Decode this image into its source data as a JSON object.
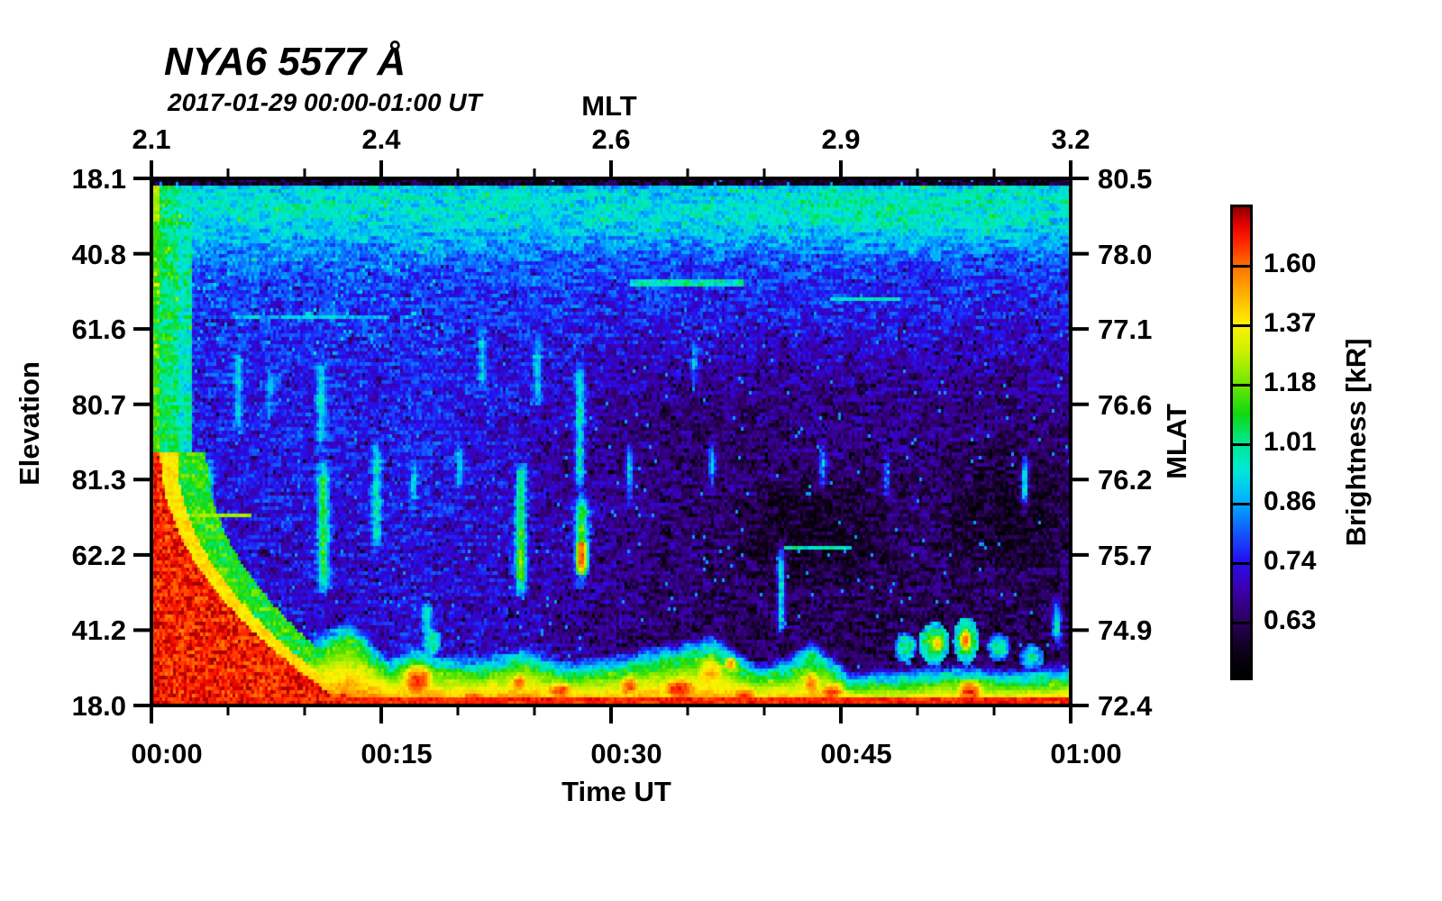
{
  "header": {
    "title": "NYA6 5577 Å",
    "subtitle": "2017-01-29 00:00-01:00 UT"
  },
  "axes": {
    "top": {
      "title": "MLT",
      "tick_labels": [
        "2.1",
        "2.4",
        "2.6",
        "2.9",
        "3.2"
      ],
      "minor_per_interval": 2
    },
    "bottom": {
      "title": "Time UT",
      "tick_labels": [
        "00:00",
        "00:15",
        "00:30",
        "00:45",
        "01:00"
      ],
      "minor_per_interval": 2
    },
    "left": {
      "title": "Elevation",
      "tick_labels": [
        "18.1",
        "40.8",
        "61.6",
        "80.7",
        "81.3",
        "62.2",
        "41.2",
        "18.0"
      ]
    },
    "right": {
      "title": "MLAT",
      "tick_labels": [
        "80.5",
        "78.0",
        "77.1",
        "76.6",
        "76.2",
        "75.7",
        "74.9",
        "72.4"
      ]
    }
  },
  "colorbar": {
    "title": "Brightness [kR]",
    "tick_labels": [
      "1.60",
      "1.37",
      "1.18",
      "1.01",
      "0.86",
      "0.74",
      "0.63"
    ]
  },
  "chart_data": {
    "type": "heatmap",
    "title": "NYA6 5577 Å",
    "subtitle": "2017-01-29 00:00-01:00 UT",
    "x_axis": {
      "label": "Time UT",
      "ticks": [
        "00:00",
        "00:15",
        "00:30",
        "00:45",
        "01:00"
      ],
      "minor_step_minutes": 5
    },
    "x2_axis": {
      "label": "MLT",
      "ticks": [
        2.1,
        2.4,
        2.6,
        2.9,
        3.2
      ]
    },
    "y_axis": {
      "label": "Elevation",
      "ticks": [
        18.1,
        40.8,
        61.6,
        80.7,
        81.3,
        62.2,
        41.2,
        18.0
      ]
    },
    "y2_axis": {
      "label": "MLAT",
      "ticks": [
        80.5,
        78.0,
        77.1,
        76.6,
        76.2,
        75.7,
        74.9,
        72.4
      ]
    },
    "z_axis": {
      "label": "Brightness [kR]",
      "colorbar_ticks": [
        1.6,
        1.37,
        1.18,
        1.01,
        0.86,
        0.74,
        0.63
      ],
      "colorbar_scale": "histogram-equalized"
    },
    "grid": false,
    "colormap": {
      "stops": [
        [
          0.0,
          "#000000"
        ],
        [
          0.05,
          "#0c0016"
        ],
        [
          0.125,
          "#2e0060"
        ],
        [
          0.19,
          "#3c00b0"
        ],
        [
          0.25,
          "#2410f0"
        ],
        [
          0.315,
          "#1060ff"
        ],
        [
          0.375,
          "#00b0ff"
        ],
        [
          0.44,
          "#00e8d8"
        ],
        [
          0.5,
          "#00e890"
        ],
        [
          0.56,
          "#10d810"
        ],
        [
          0.625,
          "#70e800"
        ],
        [
          0.69,
          "#c8f000"
        ],
        [
          0.75,
          "#fff200"
        ],
        [
          0.815,
          "#ffb000"
        ],
        [
          0.875,
          "#ff7000"
        ],
        [
          0.93,
          "#ff2000"
        ],
        [
          0.965,
          "#e00000"
        ],
        [
          1.0,
          "#8c0000"
        ]
      ]
    },
    "render": {
      "seed": 1290117,
      "cell": [
        3,
        4
      ],
      "background": {
        "top_dark_v": 0.012,
        "cyan_band": {
          "peak_v": 0.055,
          "sigma": 0.075,
          "base": 0.31,
          "amp": 0.13,
          "right_bump_u": 0.82,
          "right_bump_sigma": 0.22,
          "right_bump_amp": 0.05
        },
        "mid": {
          "v0": 0.14,
          "t0": 0.3,
          "v1": 0.32,
          "t1": 0.26,
          "deep_t": 0.22
        },
        "right_dark_amp": 0.1,
        "pockets": [
          {
            "u": 0.72,
            "v": 0.66,
            "ru": 0.1,
            "rv": 0.13,
            "d": 0.07
          },
          {
            "u": 0.93,
            "v": 0.62,
            "ru": 0.09,
            "rv": 0.15,
            "d": 0.07
          },
          {
            "u": 0.52,
            "v": 0.5,
            "ru": 0.2,
            "rv": 0.12,
            "d": 0.025
          }
        ],
        "noise": 0.1
      },
      "left_column": {
        "edge_u": 0.008,
        "edge_t_top": 0.66,
        "edge_t": 0.58,
        "col_u": 0.03,
        "col_t": 0.52,
        "halo_u": 0.045,
        "halo_t": 0.46,
        "v_end": 0.62
      },
      "wedge": {
        "v_start": 0.52,
        "u0": 0.01,
        "k": 0.9,
        "t": 0.9,
        "yellow_pad": 0.018,
        "yellow_t": 0.76,
        "green_pad": 0.05,
        "green_t": 0.57
      },
      "band": {
        "top_points": [
          [
            0,
            0.775
          ],
          [
            0.035,
            0.8
          ],
          [
            0.075,
            0.87
          ],
          [
            0.13,
            0.93
          ],
          [
            0.165,
            0.9
          ],
          [
            0.215,
            0.858
          ],
          [
            0.26,
            0.93
          ],
          [
            0.285,
            0.905
          ],
          [
            0.315,
            0.925
          ],
          [
            0.36,
            0.93
          ],
          [
            0.4,
            0.91
          ],
          [
            0.46,
            0.935
          ],
          [
            0.52,
            0.92
          ],
          [
            0.575,
            0.9
          ],
          [
            0.61,
            0.885
          ],
          [
            0.66,
            0.94
          ],
          [
            0.695,
            0.925
          ],
          [
            0.718,
            0.895
          ],
          [
            0.76,
            0.955
          ],
          [
            0.82,
            0.95
          ],
          [
            0.87,
            0.94
          ],
          [
            0.93,
            0.95
          ],
          [
            1,
            0.94
          ]
        ],
        "fringe": 0.035,
        "fringe_t": 0.45,
        "t_top": 0.47,
        "t_bottom": 0.88,
        "gamma": 0.8,
        "red_line_v": 0.982,
        "red_line_t": 0.93,
        "deep_line_v": 0.996,
        "deep_line_t": 0.96,
        "noise": 0.06
      },
      "streaks": [
        {
          "u": 0.033,
          "v0": 0.3,
          "v1": 0.62,
          "w": 0.006,
          "t": 0.46
        },
        {
          "u": 0.062,
          "v0": 0.52,
          "v1": 0.86,
          "w": 0.005,
          "t": 0.52
        },
        {
          "u": 0.095,
          "v0": 0.3,
          "v1": 0.5,
          "w": 0.004,
          "t": 0.42
        },
        {
          "u": 0.13,
          "v0": 0.34,
          "v1": 0.46,
          "w": 0.004,
          "t": 0.4
        },
        {
          "u": 0.185,
          "v0": 0.33,
          "v1": 0.52,
          "w": 0.005,
          "t": 0.44
        },
        {
          "u": 0.187,
          "v0": 0.52,
          "v1": 0.8,
          "w": 0.006,
          "t": 0.56
        },
        {
          "u": 0.245,
          "v0": 0.48,
          "v1": 0.72,
          "w": 0.005,
          "t": 0.47
        },
        {
          "u": 0.285,
          "v0": 0.52,
          "v1": 0.64,
          "w": 0.004,
          "t": 0.43
        },
        {
          "u": 0.3,
          "v0": 0.78,
          "v1": 0.885,
          "w": 0.006,
          "t": 0.49
        },
        {
          "u": 0.335,
          "v0": 0.48,
          "v1": 0.6,
          "w": 0.004,
          "t": 0.44
        },
        {
          "u": 0.36,
          "v0": 0.26,
          "v1": 0.42,
          "w": 0.004,
          "t": 0.41
        },
        {
          "u": 0.402,
          "v0": 0.52,
          "v1": 0.8,
          "w": 0.006,
          "t": 0.56,
          "core": {
            "v0": 0.7,
            "v1": 0.8,
            "t": 0.64
          }
        },
        {
          "u": 0.42,
          "v0": 0.28,
          "v1": 0.44,
          "w": 0.005,
          "t": 0.42
        },
        {
          "u": 0.466,
          "v0": 0.34,
          "v1": 0.6,
          "w": 0.005,
          "t": 0.48
        },
        {
          "u": 0.468,
          "v0": 0.58,
          "v1": 0.78,
          "w": 0.007,
          "t": 0.58,
          "core": {
            "v0": 0.69,
            "v1": 0.75,
            "t": 0.9
          }
        },
        {
          "u": 0.52,
          "v0": 0.48,
          "v1": 0.62,
          "w": 0.004,
          "t": 0.42
        },
        {
          "u": 0.59,
          "v0": 0.3,
          "v1": 0.4,
          "w": 0.004,
          "t": 0.4
        },
        {
          "u": 0.61,
          "v0": 0.48,
          "v1": 0.6,
          "w": 0.004,
          "t": 0.4
        },
        {
          "u": 0.685,
          "v0": 0.68,
          "v1": 0.875,
          "w": 0.004,
          "t": 0.47,
          "core": {
            "v0": 0.83,
            "v1": 0.875,
            "t": 0.6
          }
        },
        {
          "u": 0.73,
          "v0": 0.48,
          "v1": 0.6,
          "w": 0.004,
          "t": 0.38
        },
        {
          "u": 0.8,
          "v0": 0.5,
          "v1": 0.62,
          "w": 0.003,
          "t": 0.38
        },
        {
          "u": 0.95,
          "v0": 0.5,
          "v1": 0.64,
          "w": 0.004,
          "t": 0.44
        },
        {
          "u": 0.985,
          "v0": 0.78,
          "v1": 0.9,
          "w": 0.005,
          "t": 0.47
        }
      ],
      "hlines": [
        {
          "v": 0.197,
          "u0": 0.52,
          "u1": 0.645,
          "t": 0.47
        },
        {
          "v": 0.226,
          "u0": 0.737,
          "u1": 0.816,
          "t": 0.46
        },
        {
          "v": 0.262,
          "u0": 0.09,
          "u1": 0.26,
          "t": 0.38
        },
        {
          "v": 0.635,
          "u0": 0.033,
          "u1": 0.108,
          "t": 0.66
        },
        {
          "v": 0.7,
          "u0": 0.688,
          "u1": 0.762,
          "t": 0.45
        }
      ],
      "warm_blobs": [
        {
          "u": 0.065,
          "v": 0.975,
          "ru": 0.02,
          "rv": 0.02,
          "t": 0.93
        },
        {
          "u": 0.105,
          "v": 0.985,
          "ru": 0.015,
          "rv": 0.013,
          "t": 0.91
        },
        {
          "u": 0.165,
          "v": 0.955,
          "ru": 0.022,
          "rv": 0.03,
          "t": 0.94
        },
        {
          "u": 0.21,
          "v": 0.975,
          "ru": 0.015,
          "rv": 0.018,
          "t": 0.92
        },
        {
          "u": 0.29,
          "v": 0.95,
          "ru": 0.02,
          "rv": 0.035,
          "t": 0.94
        },
        {
          "u": 0.35,
          "v": 0.982,
          "ru": 0.025,
          "rv": 0.014,
          "t": 0.93
        },
        {
          "u": 0.4,
          "v": 0.955,
          "ru": 0.012,
          "rv": 0.025,
          "t": 0.89
        },
        {
          "u": 0.445,
          "v": 0.968,
          "ru": 0.02,
          "rv": 0.02,
          "t": 0.92
        },
        {
          "u": 0.52,
          "v": 0.96,
          "ru": 0.015,
          "rv": 0.025,
          "t": 0.9
        },
        {
          "u": 0.575,
          "v": 0.965,
          "ru": 0.025,
          "rv": 0.028,
          "t": 0.94
        },
        {
          "u": 0.608,
          "v": 0.935,
          "ru": 0.02,
          "rv": 0.038,
          "t": 0.82
        },
        {
          "u": 0.63,
          "v": 0.918,
          "ru": 0.008,
          "rv": 0.014,
          "t": 0.86
        },
        {
          "u": 0.645,
          "v": 0.975,
          "ru": 0.02,
          "rv": 0.018,
          "t": 0.92
        },
        {
          "u": 0.718,
          "v": 0.955,
          "ru": 0.012,
          "rv": 0.03,
          "t": 0.88
        },
        {
          "u": 0.74,
          "v": 0.97,
          "ru": 0.018,
          "rv": 0.022,
          "t": 0.92
        },
        {
          "u": 0.855,
          "v": 0.878,
          "ru": 0.008,
          "rv": 0.02,
          "t": 0.8
        },
        {
          "u": 0.886,
          "v": 0.872,
          "ru": 0.007,
          "rv": 0.022,
          "t": 0.89
        },
        {
          "u": 0.89,
          "v": 0.97,
          "ru": 0.018,
          "rv": 0.024,
          "t": 0.93
        },
        {
          "u": 0.97,
          "v": 0.985,
          "ru": 0.03,
          "rv": 0.012,
          "t": 0.92
        }
      ],
      "cool_blobs": [
        {
          "u": 0.305,
          "v": 0.875,
          "ru": 0.01,
          "rv": 0.028,
          "t": 0.5
        },
        {
          "u": 0.82,
          "v": 0.885,
          "ru": 0.012,
          "rv": 0.03,
          "t": 0.5
        },
        {
          "u": 0.852,
          "v": 0.878,
          "ru": 0.017,
          "rv": 0.04,
          "t": 0.6
        },
        {
          "u": 0.886,
          "v": 0.872,
          "ru": 0.014,
          "rv": 0.045,
          "t": 0.6
        },
        {
          "u": 0.922,
          "v": 0.885,
          "ru": 0.012,
          "rv": 0.028,
          "t": 0.46
        },
        {
          "u": 0.958,
          "v": 0.905,
          "ru": 0.014,
          "rv": 0.025,
          "t": 0.47
        }
      ]
    }
  }
}
